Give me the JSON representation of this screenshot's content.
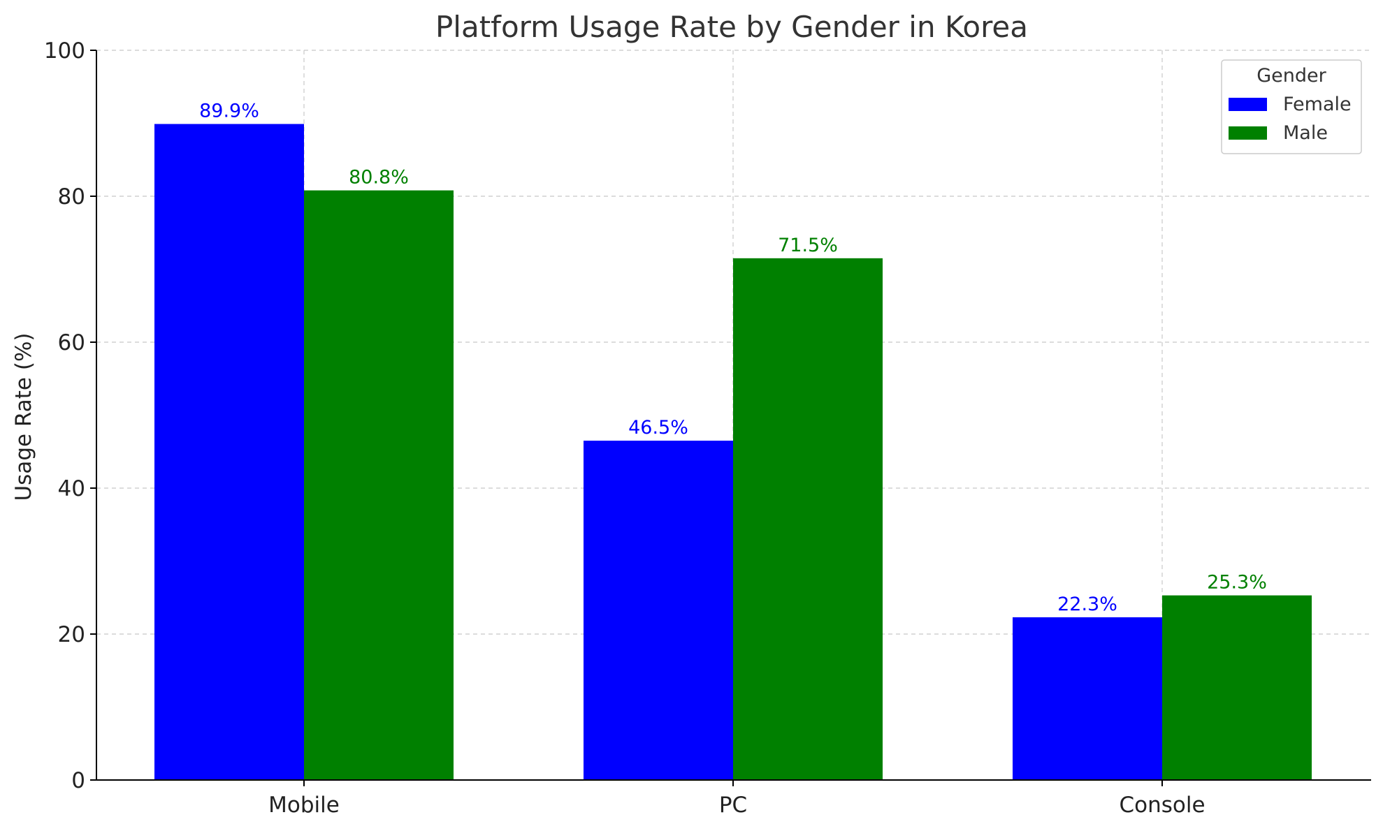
{
  "chart_data": {
    "type": "bar",
    "title": "Platform Usage Rate by Gender in Korea",
    "xlabel": "",
    "ylabel": "Usage Rate (%)",
    "categories": [
      "Mobile",
      "PC",
      "Console"
    ],
    "series": [
      {
        "name": "Female",
        "color": "#0000ff",
        "values": [
          89.9,
          46.5,
          22.3
        ],
        "labels": [
          "89.9%",
          "46.5%",
          "22.3%"
        ]
      },
      {
        "name": "Male",
        "color": "#008000",
        "values": [
          80.8,
          71.5,
          25.3
        ],
        "labels": [
          "80.8%",
          "71.5%",
          "25.3%"
        ]
      }
    ],
    "ylim": [
      0,
      100
    ],
    "yticks": [
      0,
      20,
      40,
      60,
      80,
      100
    ],
    "ytick_labels": [
      "0",
      "20",
      "40",
      "60",
      "80",
      "100"
    ],
    "grid": true,
    "legend": {
      "title": "Gender",
      "placement": "top-right"
    }
  }
}
